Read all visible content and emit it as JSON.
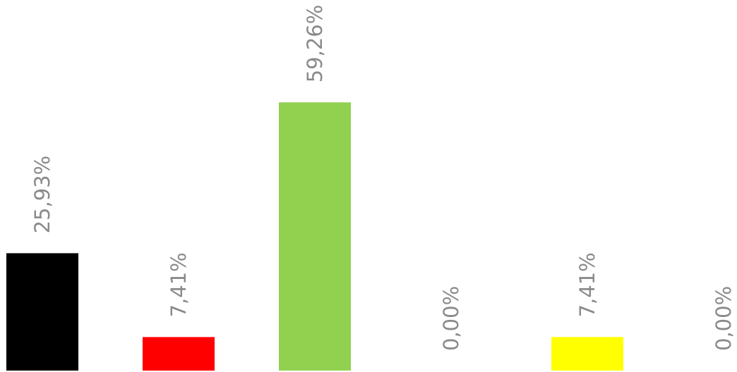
{
  "chart_data": {
    "type": "bar",
    "categories": [
      "",
      "",
      "",
      "",
      "",
      ""
    ],
    "values": [
      25.93,
      7.41,
      59.26,
      0.0,
      7.41,
      0.0
    ],
    "data_labels": [
      "25,93%",
      "7,41%",
      "59,26%",
      "0,00%",
      "7,41%",
      "0,00%"
    ],
    "colors": [
      "#000000",
      "#ff0000",
      "#92d050",
      "#ffffff",
      "#ffff00",
      "#ffffff"
    ],
    "ylim": [
      0,
      100
    ],
    "title": "",
    "xlabel": "",
    "ylabel": "",
    "grid": false,
    "legend": "none",
    "label_orientation": "vertical"
  }
}
